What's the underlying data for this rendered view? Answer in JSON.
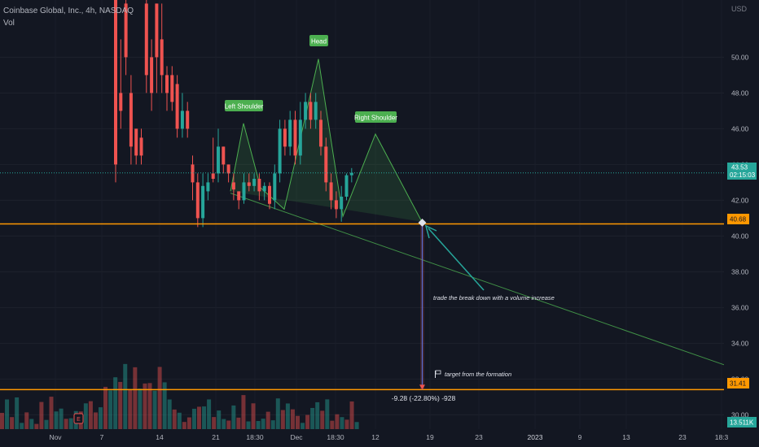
{
  "header": {
    "symbol_line": "Coinbase Global, Inc., 4h, NASDAQ",
    "volume_label": "Vol",
    "currency": "USD"
  },
  "chart_data": {
    "type": "candlestick",
    "y_axis": {
      "range": [
        29.2,
        53.2
      ],
      "ticks": [
        "30.00",
        "32.00",
        "34.00",
        "36.00",
        "38.00",
        "40.00",
        "42.00",
        "44.00",
        "46.00",
        "48.00",
        "50.00"
      ]
    },
    "x_axis": {
      "labels": [
        "Nov",
        "7",
        "14",
        "21",
        "18:30",
        "Dec",
        "18:30",
        "12",
        "19",
        "23",
        "2023",
        "9",
        "13",
        "23",
        "18:3"
      ]
    },
    "price_markers": {
      "current": {
        "price": "43.53",
        "countdown": "02:15:03",
        "value": 43.53
      },
      "neckline": {
        "price": "40.68",
        "value": 40.68
      },
      "target": {
        "price": "31.41",
        "value": 31.41
      },
      "volume": {
        "label": "13.511K"
      }
    },
    "annotations": {
      "left_shoulder": "Left Shoulder",
      "head": "Head",
      "right_shoulder": "Right Shoulder",
      "trade_note": "trade the break down with a volume increase",
      "target_note": "target from the formation",
      "measure": "-9.28 (-22.80%) -928"
    },
    "pattern_points": [
      {
        "t": 38,
        "p": 42.5
      },
      {
        "t": 45,
        "p": 46.3
      },
      {
        "t": 51,
        "p": 42.7
      },
      {
        "t": 56,
        "p": 41.5
      },
      {
        "t": 63,
        "p": 49.9
      },
      {
        "t": 69,
        "p": 41.1
      },
      {
        "t": 76,
        "p": 45.7
      },
      {
        "t": 84,
        "p": 40.8
      }
    ],
    "trendline": {
      "from": {
        "t": 38,
        "p": 42.4
      },
      "to": {
        "t": 145,
        "p": 32.8
      }
    },
    "measure_bar": {
      "t": 84,
      "from": 40.68,
      "to": 31.41
    },
    "candles": [
      [
        20,
        56,
        44,
        58,
        43,
        4
      ],
      [
        20.5,
        48,
        47,
        51,
        46,
        5
      ],
      [
        20.5,
        53,
        50,
        56,
        49,
        6
      ],
      [
        21,
        48,
        45,
        49,
        44,
        5
      ],
      [
        21,
        46,
        44.5,
        46,
        44,
        7
      ],
      [
        21.5,
        45.5,
        44.5,
        46,
        44,
        5
      ],
      [
        21.5,
        53,
        49,
        54,
        48,
        5
      ],
      [
        22,
        50,
        48,
        51,
        47,
        6
      ],
      [
        22.5,
        53,
        50,
        53,
        48,
        7
      ],
      [
        23,
        51,
        49,
        53,
        48,
        6
      ],
      [
        23.5,
        49,
        48,
        49.5,
        47,
        5
      ],
      [
        24,
        49,
        47.5,
        49.5,
        47,
        6
      ],
      [
        24.5,
        48.5,
        46,
        49,
        45.5,
        8
      ],
      [
        25,
        46,
        47,
        48,
        45.5,
        7
      ],
      [
        25.5,
        47,
        46,
        47.5,
        45.5,
        6
      ],
      [
        26,
        44,
        43,
        44.5,
        42,
        9
      ],
      [
        26.5,
        43,
        41,
        43.5,
        40.5,
        8
      ],
      [
        27,
        41,
        42.8,
        43.5,
        40.5,
        6
      ],
      [
        27.5,
        42.5,
        43,
        43.5,
        42,
        5
      ],
      [
        28,
        43.5,
        43.2,
        45.5,
        43,
        5
      ],
      [
        28.5,
        43.5,
        45,
        46,
        43,
        7
      ],
      [
        29,
        45,
        44,
        45,
        43.5,
        6
      ],
      [
        29.5,
        44,
        43.5,
        44,
        43,
        5
      ],
      [
        30,
        43,
        42.6,
        43.5,
        42,
        5
      ],
      [
        30.5,
        42.5,
        42,
        42.5,
        41.5,
        4
      ],
      [
        31,
        42,
        43,
        43.5,
        41.8,
        6
      ],
      [
        31.5,
        43,
        42.8,
        43.5,
        42.5,
        5
      ],
      [
        32,
        42.8,
        43.2,
        43.5,
        42.5,
        4
      ],
      [
        32.5,
        43.2,
        42.5,
        43.5,
        42,
        5
      ],
      [
        33,
        42.5,
        42.8,
        43,
        42,
        4
      ],
      [
        33.5,
        42.8,
        41.8,
        43,
        41.5,
        6
      ],
      [
        34,
        42,
        43.5,
        44,
        41.5,
        7
      ],
      [
        34.5,
        43.5,
        46,
        46.5,
        43,
        9
      ],
      [
        35,
        46,
        45,
        46.5,
        44.5,
        7
      ],
      [
        35.5,
        45,
        46.5,
        47,
        44.5,
        6
      ],
      [
        36,
        46.5,
        44.5,
        47,
        44,
        8
      ],
      [
        36.5,
        44.5,
        46.5,
        47.5,
        44,
        9
      ],
      [
        37,
        46.5,
        47.5,
        48,
        46,
        8
      ],
      [
        37.5,
        47.5,
        46.5,
        48,
        46,
        7
      ],
      [
        38,
        46.5,
        47.5,
        48,
        46,
        6
      ],
      [
        38.5,
        46.5,
        45,
        47,
        44.5,
        8
      ],
      [
        39,
        45,
        43,
        45.5,
        42.5,
        9
      ],
      [
        39.5,
        43,
        42,
        43.5,
        41.5,
        8
      ],
      [
        40,
        42,
        41.5,
        42.5,
        41,
        7
      ],
      [
        40.5,
        41.5,
        42.2,
        42.8,
        40.8,
        6
      ],
      [
        41,
        42.2,
        43.4,
        43.5,
        42,
        5
      ],
      [
        41.5,
        43.4,
        43.53,
        43.8,
        43,
        6
      ]
    ]
  }
}
